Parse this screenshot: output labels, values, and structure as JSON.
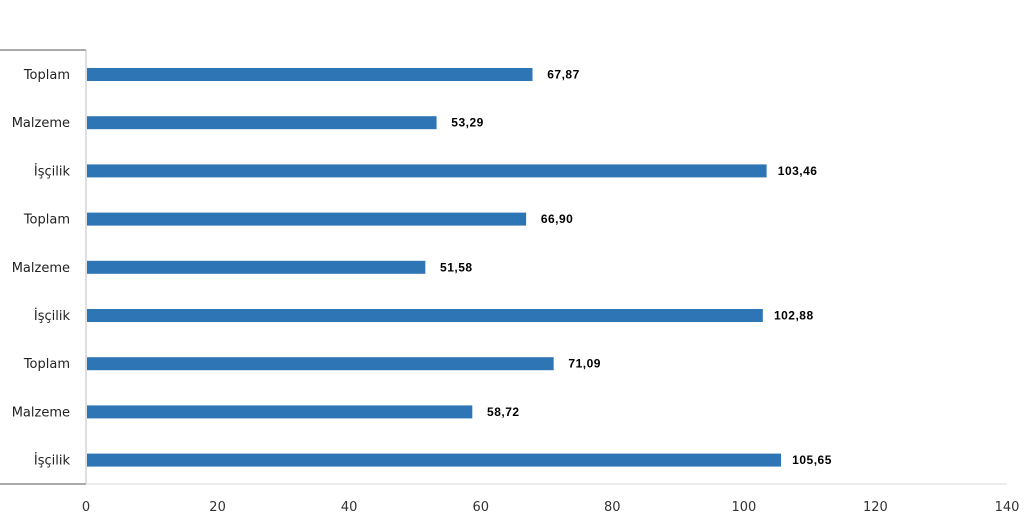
{
  "chart_data": {
    "type": "bar",
    "orientation": "horizontal",
    "categories": [
      "Toplam",
      "Malzeme",
      "İşçilik",
      "Toplam",
      "Malzeme",
      "İşçilik",
      "Toplam",
      "Malzeme",
      "İşçilik"
    ],
    "values": [
      67.87,
      53.29,
      103.46,
      66.9,
      51.58,
      102.88,
      71.09,
      58.72,
      105.65
    ],
    "value_labels": [
      "67,87",
      "53,29",
      "103,46",
      "66,90",
      "51,58",
      "102,88",
      "71,09",
      "58,72",
      "105,65"
    ],
    "xlim": [
      0,
      140
    ],
    "x_ticks": [
      0,
      20,
      40,
      60,
      80,
      100,
      120,
      140
    ],
    "x_tick_labels": [
      "0",
      "20",
      "40",
      "60",
      "80",
      "100",
      "120",
      "140"
    ],
    "title": "",
    "xlabel": "",
    "ylabel": "",
    "grid": false,
    "legend": "none",
    "bar_color": "#2e75b6",
    "axis_color": "#555555"
  }
}
